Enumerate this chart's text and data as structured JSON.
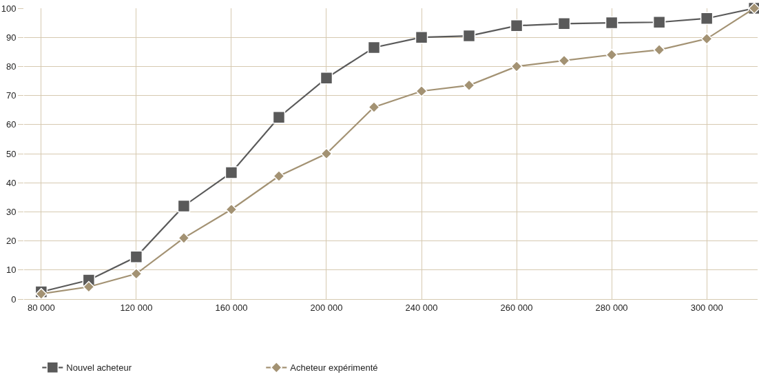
{
  "chart_data": {
    "type": "line",
    "categories": [
      "80 000",
      null,
      "120 000",
      null,
      "160 000",
      null,
      "200 000",
      null,
      "240 000",
      null,
      "260 000",
      null,
      "280 000",
      null,
      "300 000",
      null
    ],
    "series": [
      {
        "name": "Nouvel acheteur",
        "color": "#5a5a5a",
        "marker": "square",
        "values": [
          2.5,
          6.5,
          14.5,
          32,
          43.5,
          62.5,
          76,
          86.5,
          90,
          90.5,
          94,
          94.7,
          95,
          95.2,
          96.5,
          100
        ]
      },
      {
        "name": "Acheteur expérimenté",
        "color": "#a39273",
        "marker": "diamond",
        "values": [
          1.8,
          4.2,
          8.7,
          21,
          30.8,
          42.3,
          50,
          66,
          71.5,
          73.5,
          80,
          82,
          84,
          85.7,
          89.5,
          100
        ]
      }
    ],
    "ylim": [
      0,
      100
    ],
    "yticks": [
      0,
      10,
      20,
      30,
      40,
      50,
      60,
      70,
      80,
      90,
      100
    ],
    "grid": true,
    "legend": "bottom left",
    "line_style": "solid"
  }
}
